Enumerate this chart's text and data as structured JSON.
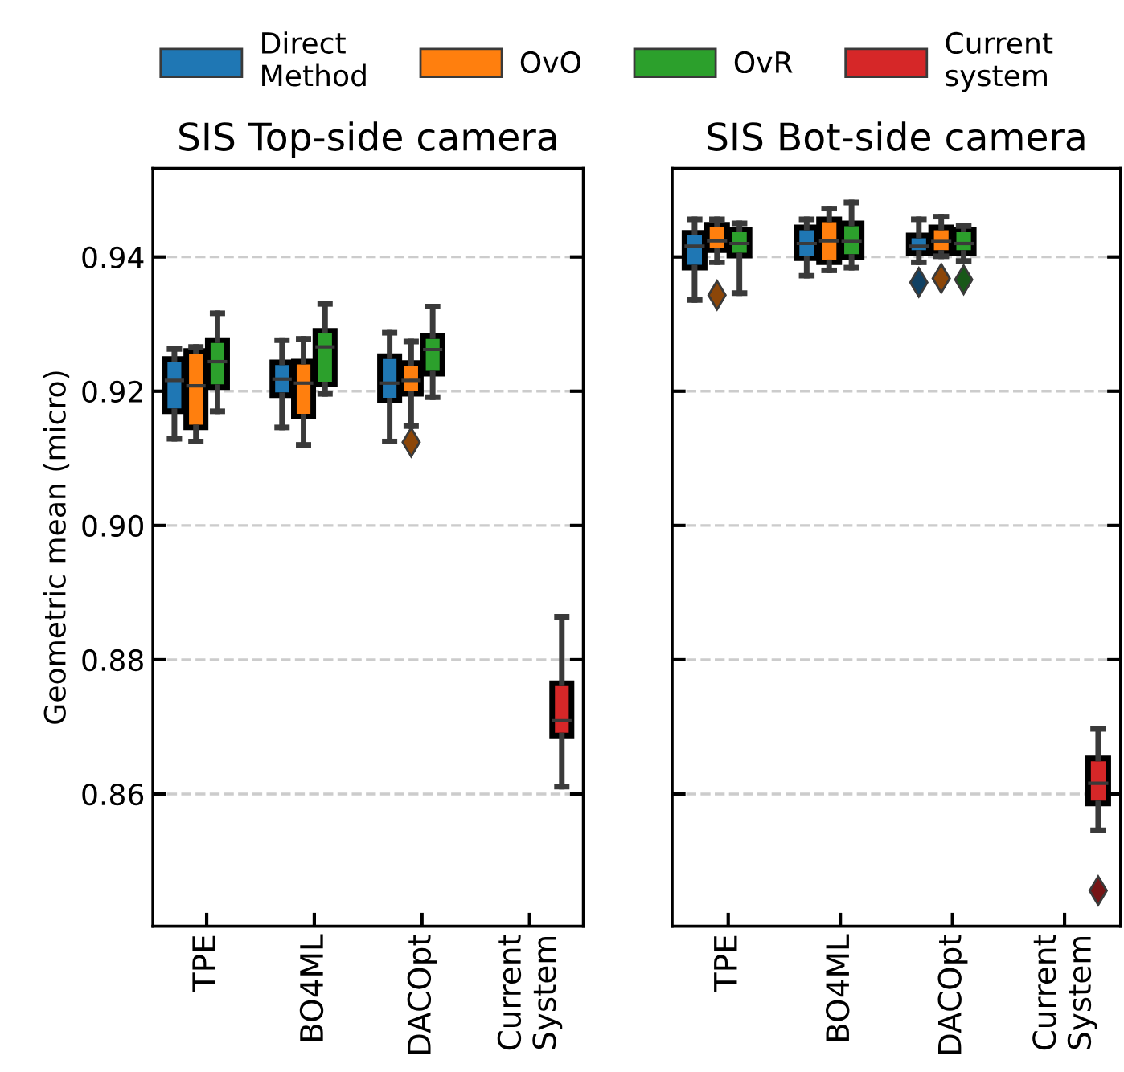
{
  "chart_data": [
    {
      "type": "box",
      "title": "SIS Top-side camera",
      "ylabel": "Geometric mean (micro)",
      "categories": [
        "TPE",
        "BO4ML",
        "DACOpt",
        "Current\nSystem"
      ],
      "ylim": [
        0.8403,
        0.9532
      ],
      "yticks": [
        {
          "value": 0.86,
          "label": "0.86"
        },
        {
          "value": 0.88,
          "label": "0.88"
        },
        {
          "value": 0.9,
          "label": "0.90"
        },
        {
          "value": 0.92,
          "label": "0.92"
        },
        {
          "value": 0.94,
          "label": "0.94"
        }
      ],
      "grid": "y",
      "legend": "top",
      "series": [
        {
          "name": "Direct\nMethod",
          "color": "#1f77b4",
          "boxes": [
            {
              "low": 0.9129,
              "q1": 0.917,
              "median": 0.9216,
              "q3": 0.9248,
              "high": 0.9263
            },
            {
              "low": 0.9146,
              "q1": 0.9194,
              "median": 0.9218,
              "q3": 0.9243,
              "high": 0.9276
            },
            {
              "low": 0.9125,
              "q1": 0.9186,
              "median": 0.9212,
              "q3": 0.9252,
              "high": 0.9287
            },
            null
          ]
        },
        {
          "name": "OvO",
          "color": "#ff7f0e",
          "boxes": [
            {
              "low": 0.9125,
              "q1": 0.9146,
              "median": 0.9208,
              "q3": 0.926,
              "high": 0.9266
            },
            {
              "low": 0.912,
              "q1": 0.9162,
              "median": 0.9212,
              "q3": 0.9244,
              "high": 0.9278
            },
            {
              "low": 0.9148,
              "q1": 0.9196,
              "median": 0.9216,
              "q3": 0.9242,
              "high": 0.9274,
              "outliers": [
                0.9124
              ]
            },
            null
          ]
        },
        {
          "name": "OvR",
          "color": "#2ca02c",
          "boxes": [
            {
              "low": 0.917,
              "q1": 0.9206,
              "median": 0.9244,
              "q3": 0.9276,
              "high": 0.9316
            },
            {
              "low": 0.9196,
              "q1": 0.921,
              "median": 0.9266,
              "q3": 0.929,
              "high": 0.933
            },
            {
              "low": 0.9191,
              "q1": 0.9226,
              "median": 0.9262,
              "q3": 0.9282,
              "high": 0.9326
            },
            null
          ]
        },
        {
          "name": "Current\nsystem",
          "color": "#d62728",
          "boxes": [
            null,
            null,
            null,
            {
              "low": 0.8611,
              "q1": 0.8687,
              "median": 0.8709,
              "q3": 0.8765,
              "high": 0.8864
            }
          ]
        }
      ]
    },
    {
      "type": "box",
      "title": "SIS Bot-side camera",
      "categories": [
        "TPE",
        "BO4ML",
        "DACOpt",
        "Current\nSystem"
      ],
      "ylim": [
        0.8403,
        0.9532
      ],
      "yticks": [
        0.86,
        0.88,
        0.9,
        0.92,
        0.94
      ],
      "tick_labels": "x",
      "grid": "y",
      "series": [
        {
          "color": "#1f77b4",
          "boxes": [
            {
              "low": 0.9336,
              "q1": 0.9384,
              "median": 0.9416,
              "q3": 0.9436,
              "high": 0.9456
            },
            {
              "low": 0.9372,
              "q1": 0.9398,
              "median": 0.942,
              "q3": 0.9444,
              "high": 0.9456
            },
            {
              "low": 0.9392,
              "q1": 0.9406,
              "median": 0.9416,
              "q3": 0.9432,
              "high": 0.9456,
              "outliers": [
                0.9362
              ]
            },
            null
          ]
        },
        {
          "color": "#ff7f0e",
          "boxes": [
            {
              "low": 0.9392,
              "q1": 0.941,
              "median": 0.9424,
              "q3": 0.9448,
              "high": 0.9456,
              "outliers": [
                0.9343
              ]
            },
            {
              "low": 0.938,
              "q1": 0.9392,
              "median": 0.9424,
              "q3": 0.9456,
              "high": 0.9472
            },
            {
              "low": 0.9401,
              "q1": 0.9406,
              "median": 0.9423,
              "q3": 0.9444,
              "high": 0.946,
              "outliers": [
                0.9368
              ]
            },
            null
          ]
        },
        {
          "color": "#2ca02c",
          "boxes": [
            {
              "low": 0.9346,
              "q1": 0.9402,
              "median": 0.942,
              "q3": 0.9441,
              "high": 0.945
            },
            {
              "low": 0.9384,
              "q1": 0.94,
              "median": 0.9423,
              "q3": 0.945,
              "high": 0.9481
            },
            {
              "low": 0.9394,
              "q1": 0.9406,
              "median": 0.942,
              "q3": 0.9441,
              "high": 0.9446,
              "outliers": [
                0.9366
              ]
            },
            null
          ]
        },
        {
          "color": "#d62728",
          "boxes": [
            null,
            null,
            null,
            {
              "low": 0.8546,
              "q1": 0.8586,
              "median": 0.8616,
              "q3": 0.8653,
              "high": 0.8697,
              "outliers": [
                0.8456
              ]
            }
          ]
        }
      ]
    }
  ]
}
